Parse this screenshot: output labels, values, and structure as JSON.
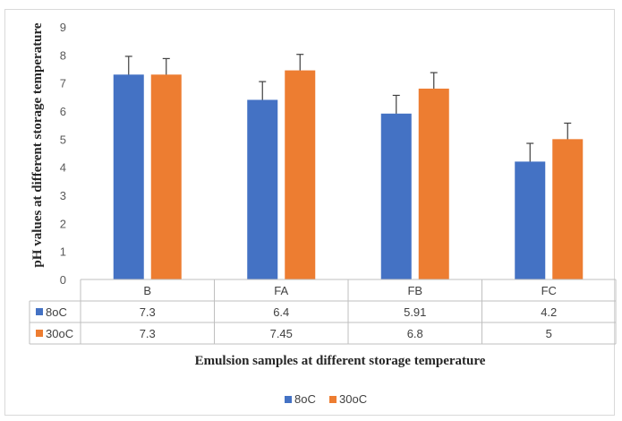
{
  "chart_data": {
    "type": "bar",
    "categories": [
      "B",
      "FA",
      "FB",
      "FC"
    ],
    "series": [
      {
        "name": "8oC",
        "values": [
          7.3,
          6.4,
          5.91,
          4.2
        ],
        "labels": [
          "7.3",
          "6.4",
          "5.91",
          "4.2"
        ],
        "error": [
          0.65,
          0.65,
          0.65,
          0.65
        ],
        "color": "#4472c4"
      },
      {
        "name": "30oC",
        "values": [
          7.3,
          7.45,
          6.8,
          5
        ],
        "labels": [
          "7.3",
          "7.45",
          "6.8",
          "5"
        ],
        "error": [
          0.57,
          0.57,
          0.57,
          0.57
        ],
        "color": "#ed7d31"
      }
    ],
    "ylim": [
      0,
      9
    ],
    "yticks": [
      0,
      1,
      2,
      3,
      4,
      5,
      6,
      7,
      8,
      9
    ],
    "xlabel": "Emulsion samples at different storage temperature",
    "ylabel": "pH values at different storage temperature",
    "grid": false,
    "legend_position": "bottom",
    "data_table": true
  }
}
